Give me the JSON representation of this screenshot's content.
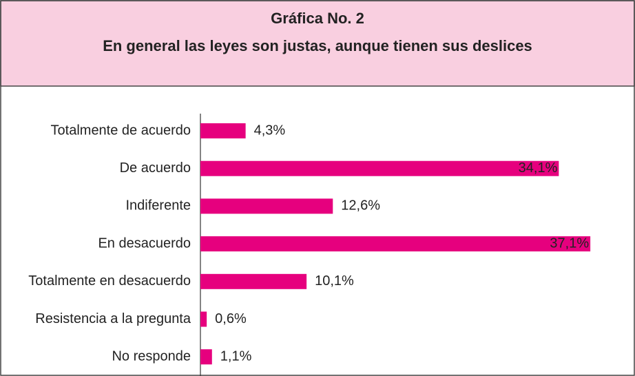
{
  "chart_data": {
    "type": "bar",
    "orientation": "horizontal",
    "title": [
      "Gráfica No. 2",
      "En general las leyes son justas, aunque tienen sus deslices"
    ],
    "categories": [
      "Totalmente de acuerdo",
      "De acuerdo",
      "Indiferente",
      "En desacuerdo",
      "Totalmente en desacuerdo",
      "Resistencia a la pregunta",
      "No responde"
    ],
    "values": [
      4.3,
      34.1,
      12.6,
      37.1,
      10.1,
      0.6,
      1.1
    ],
    "value_labels": [
      "4,3%",
      "34,1%",
      "12,6%",
      "37,1%",
      "10,1%",
      "0,6%",
      "1,1%"
    ],
    "color": "#e6007e",
    "header_color": "#f9cfe0"
  }
}
